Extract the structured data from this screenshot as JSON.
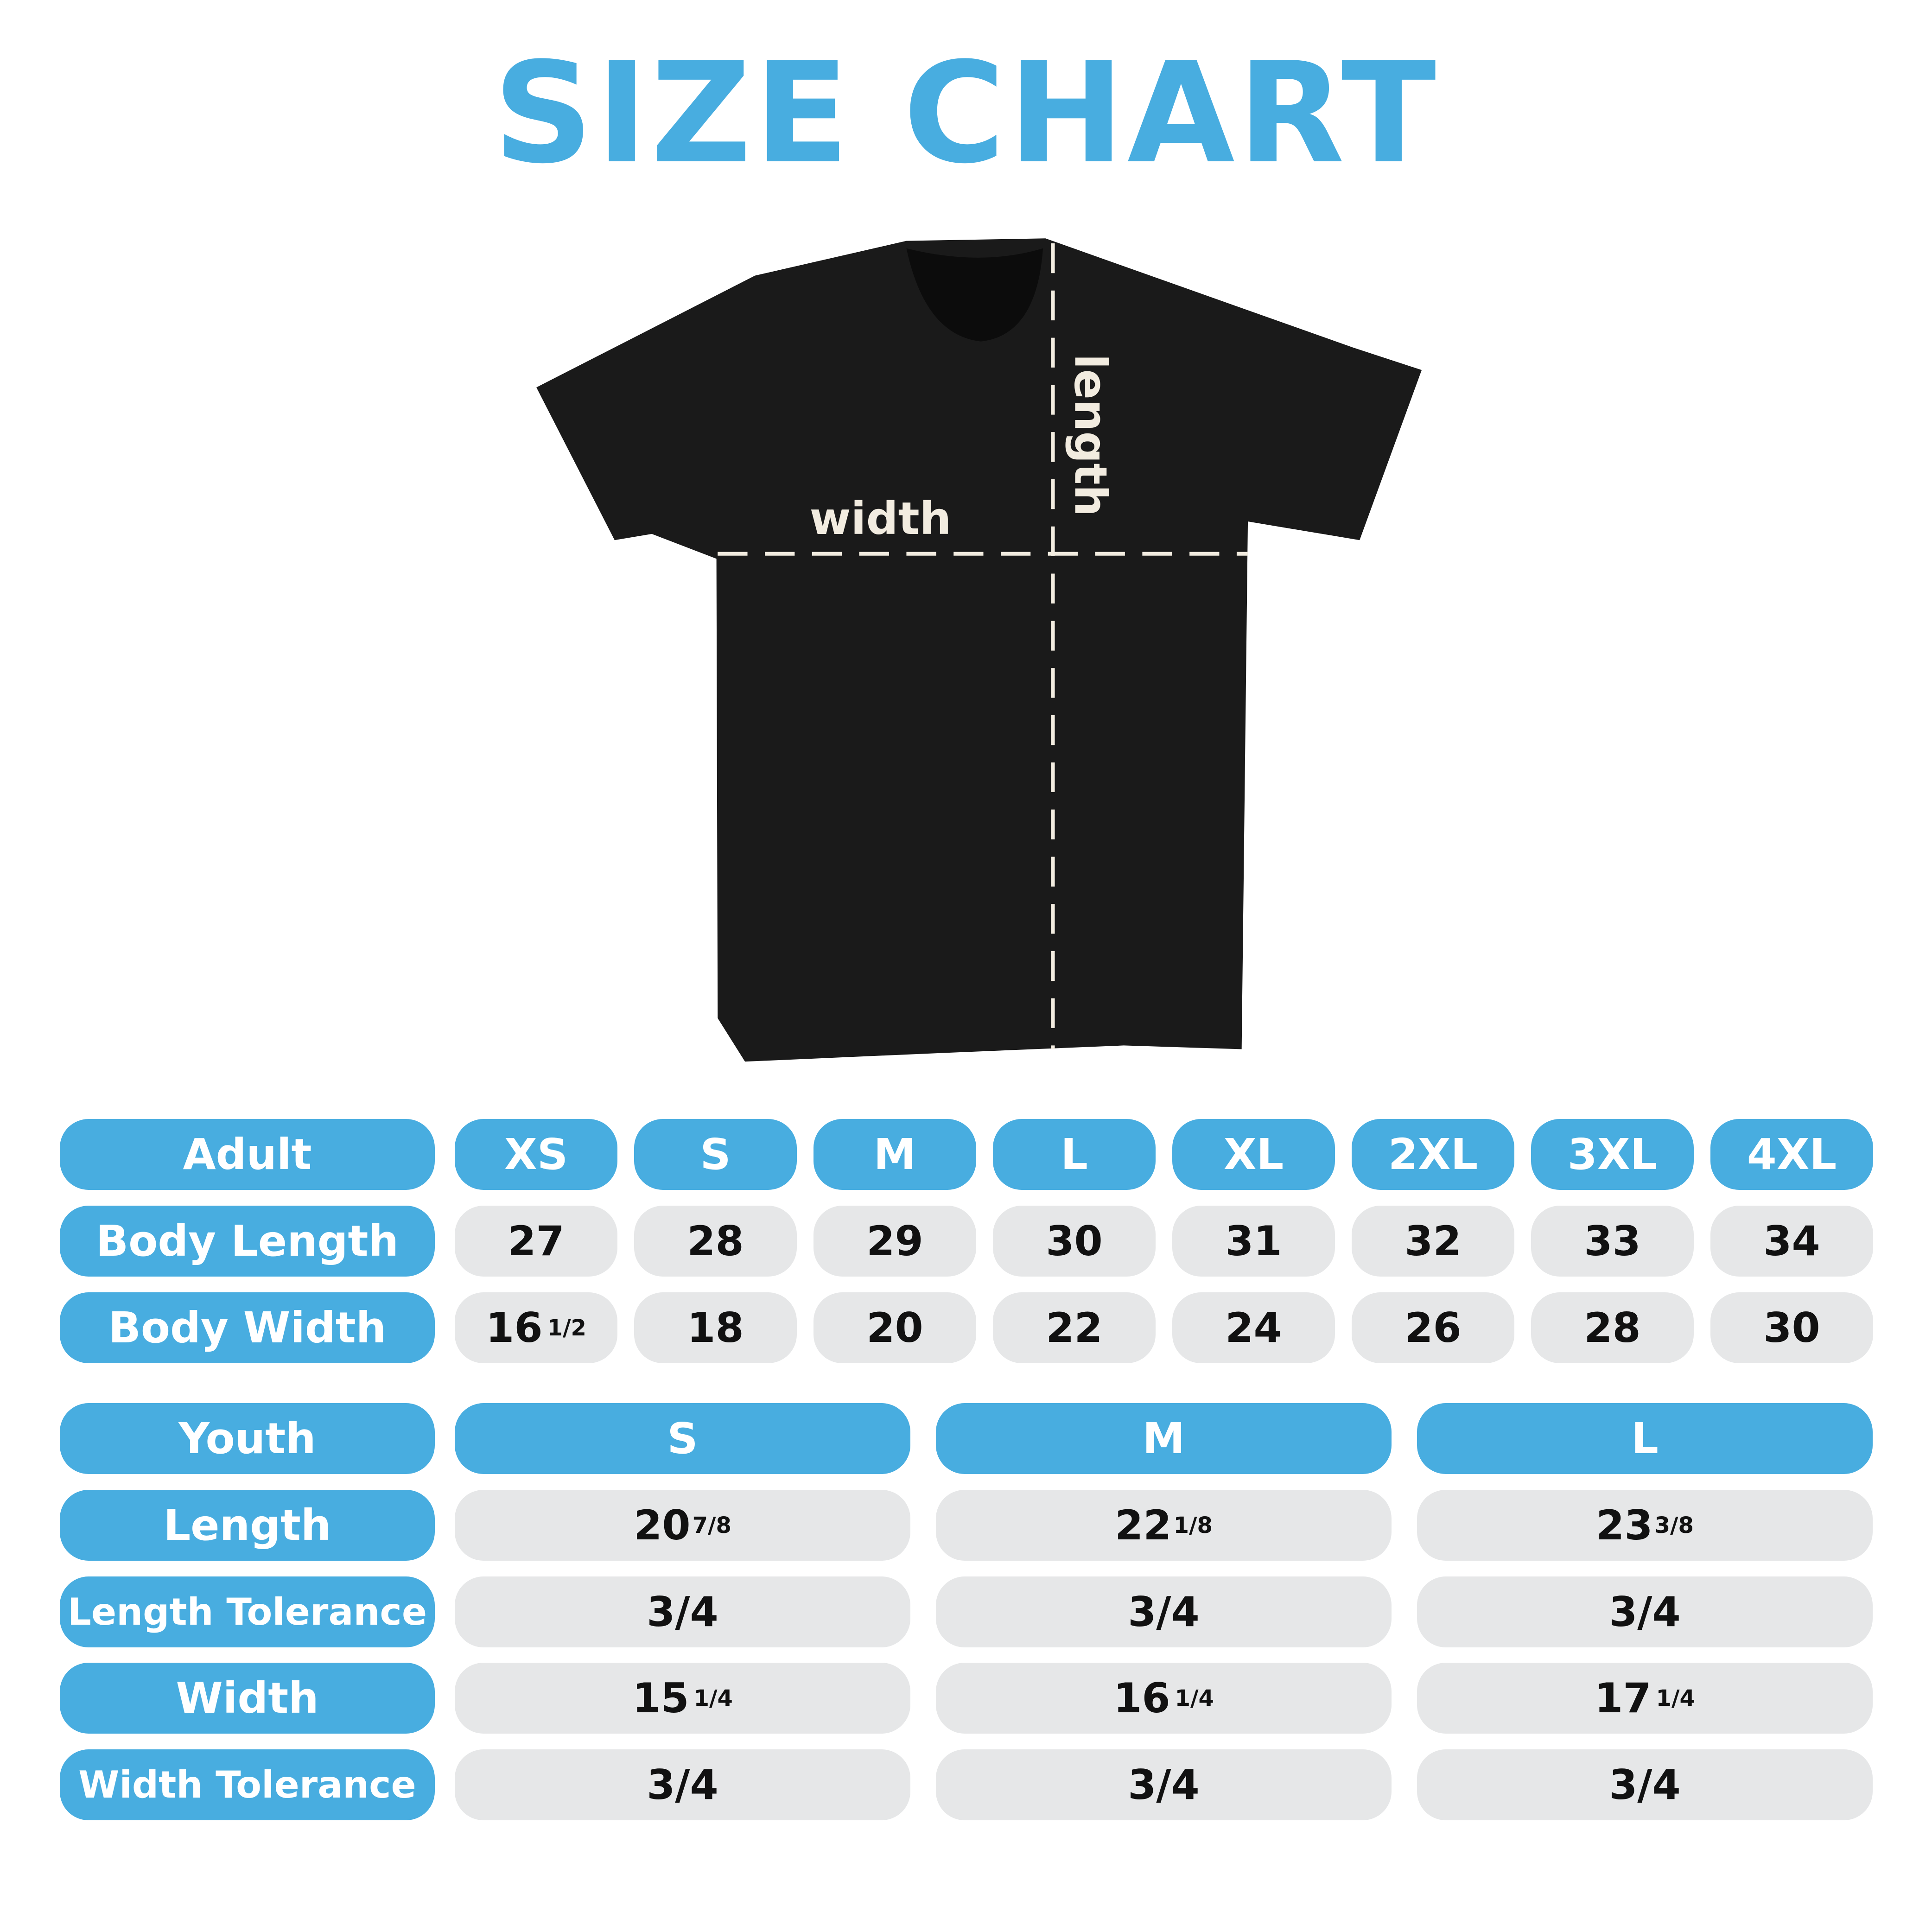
{
  "title": "SIZE CHART",
  "shirt": {
    "color": "#1a1a1a",
    "width_label": "width",
    "length_label": "length"
  },
  "colors": {
    "accent": "#48ade0",
    "cell": "#e6e7e8"
  },
  "adult": {
    "header": "Adult",
    "sizes": [
      "XS",
      "S",
      "M",
      "L",
      "XL",
      "2XL",
      "3XL",
      "4XL"
    ],
    "rows": [
      {
        "label": "Body Length",
        "values": [
          {
            "v": "27",
            "f": ""
          },
          {
            "v": "28",
            "f": ""
          },
          {
            "v": "29",
            "f": ""
          },
          {
            "v": "30",
            "f": ""
          },
          {
            "v": "31",
            "f": ""
          },
          {
            "v": "32",
            "f": ""
          },
          {
            "v": "33",
            "f": ""
          },
          {
            "v": "34",
            "f": ""
          }
        ]
      },
      {
        "label": "Body Width",
        "values": [
          {
            "v": "16",
            "f": "1/2"
          },
          {
            "v": "18",
            "f": ""
          },
          {
            "v": "20",
            "f": ""
          },
          {
            "v": "22",
            "f": ""
          },
          {
            "v": "24",
            "f": ""
          },
          {
            "v": "26",
            "f": ""
          },
          {
            "v": "28",
            "f": ""
          },
          {
            "v": "30",
            "f": ""
          }
        ]
      }
    ]
  },
  "youth": {
    "header": "Youth",
    "sizes": [
      "S",
      "M",
      "L"
    ],
    "rows": [
      {
        "label": "Length",
        "values": [
          {
            "v": "20",
            "f": "7/8"
          },
          {
            "v": "22",
            "f": "1/8"
          },
          {
            "v": "23",
            "f": "3/8"
          }
        ]
      },
      {
        "label": "Length Tolerance",
        "values": [
          {
            "v": "3/4",
            "f": ""
          },
          {
            "v": "3/4",
            "f": ""
          },
          {
            "v": "3/4",
            "f": ""
          }
        ]
      },
      {
        "label": "Width",
        "values": [
          {
            "v": "15",
            "f": "1/4"
          },
          {
            "v": "16",
            "f": "1/4"
          },
          {
            "v": "17",
            "f": "1/4"
          }
        ]
      },
      {
        "label": "Width Tolerance",
        "values": [
          {
            "v": "3/4",
            "f": ""
          },
          {
            "v": "3/4",
            "f": ""
          },
          {
            "v": "3/4",
            "f": ""
          }
        ]
      }
    ]
  }
}
